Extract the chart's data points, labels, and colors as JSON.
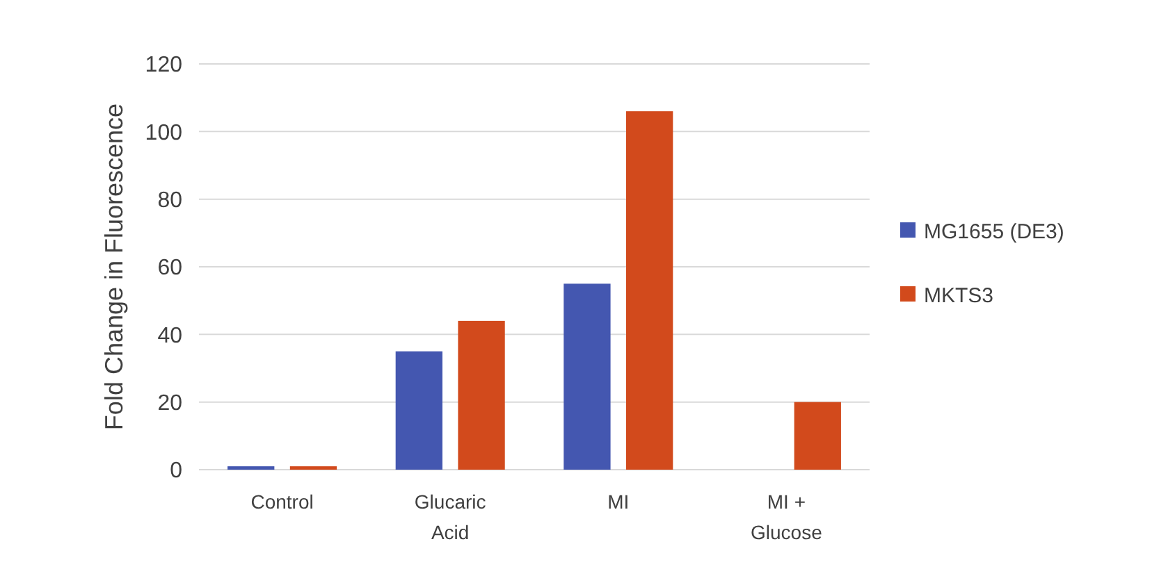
{
  "chart_data": {
    "type": "bar",
    "ylabel": "Fold Change in Fluorescence",
    "categories": [
      "Control",
      "Glucaric Acid",
      "MI",
      "MI + Glucose"
    ],
    "series": [
      {
        "name": "MG1655 (DE3)",
        "color": "#4457b0",
        "values": [
          1,
          35,
          55,
          null
        ]
      },
      {
        "name": "MKTS3",
        "color": "#d24a1c",
        "values": [
          1,
          44,
          106,
          20
        ]
      }
    ],
    "ylim": [
      0,
      120
    ],
    "yticks": [
      0,
      20,
      40,
      60,
      80,
      100,
      120
    ],
    "grid": "y",
    "legend": "right"
  }
}
